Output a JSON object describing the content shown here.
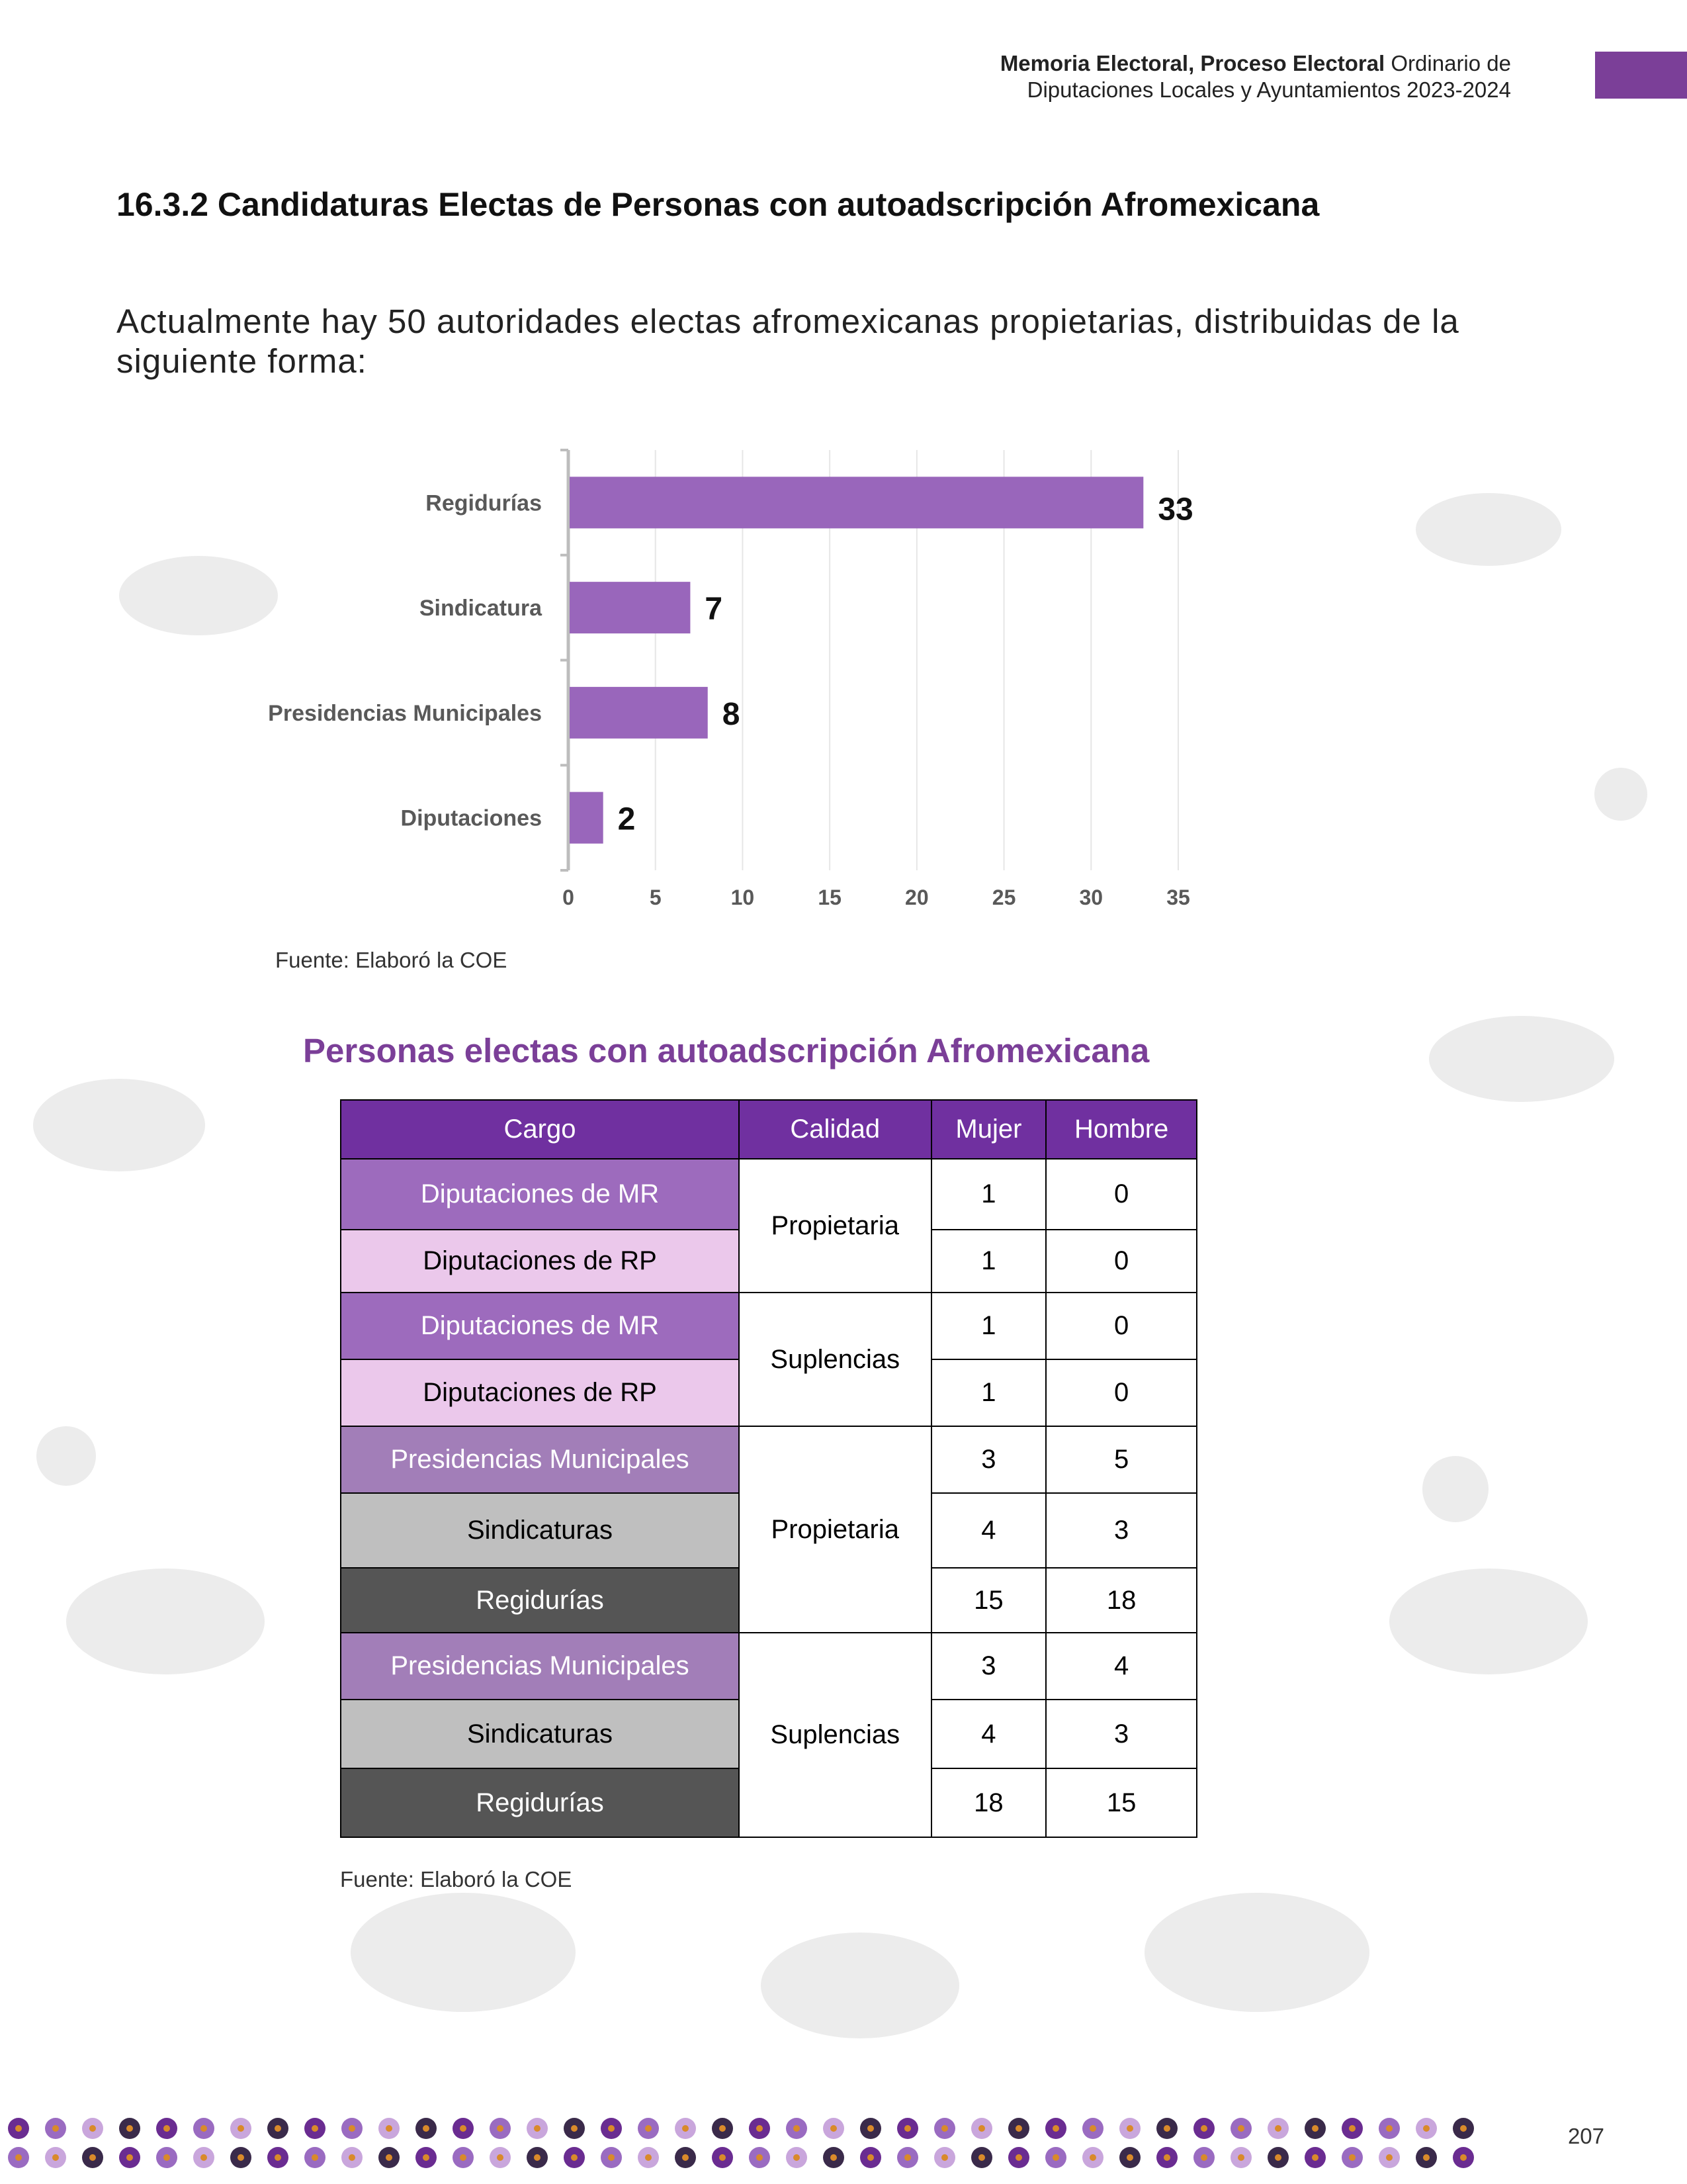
{
  "header": {
    "bold_text": "Memoria Electoral, Proceso Electoral",
    "line1_rest": "Ordinario de",
    "line2": "Diputaciones Locales y Ayuntamientos 2023-2024"
  },
  "section_title": "16.3.2 Candidaturas Electas de Personas con autoadscripción Afromexicana",
  "intro_text": "Actualmente hay 50 autoridades electas afromexicanas propietarias, distribuidas de la siguiente forma:",
  "chart_data": {
    "type": "bar",
    "orientation": "horizontal",
    "categories": [
      "Regidurías",
      "Sindicatura",
      "Presidencias Municipales",
      "Diputaciones"
    ],
    "values": [
      33,
      7,
      8,
      2
    ],
    "xlim": [
      0,
      35
    ],
    "xticks": [
      "0",
      "5",
      "10",
      "15",
      "20",
      "25",
      "30",
      "35"
    ],
    "grid": true,
    "bar_color": "#9966bb",
    "title": "",
    "xlabel": "",
    "ylabel": ""
  },
  "chart_source": "Fuente: Elaboró la COE",
  "table": {
    "title": "Personas electas con autoadscripción Afromexicana",
    "headers": [
      "Cargo",
      "Calidad",
      "Mujer",
      "Hombre"
    ],
    "rows": [
      {
        "cargo": "Diputaciones de MR",
        "calidad": "Propietaria",
        "mujer": "1",
        "hombre": "0"
      },
      {
        "cargo": "Diputaciones de RP",
        "calidad": "",
        "mujer": "1",
        "hombre": "0"
      },
      {
        "cargo": "Diputaciones de MR",
        "calidad": "Suplencias",
        "mujer": "1",
        "hombre": "0"
      },
      {
        "cargo": "Diputaciones de RP",
        "calidad": "",
        "mujer": "1",
        "hombre": "0"
      },
      {
        "cargo": "Presidencias Municipales",
        "calidad": "Propietaria",
        "mujer": "3",
        "hombre": "5"
      },
      {
        "cargo": "Sindicaturas",
        "calidad": "",
        "mujer": "4",
        "hombre": "3"
      },
      {
        "cargo": "Regidurías",
        "calidad": "",
        "mujer": "15",
        "hombre": "18"
      },
      {
        "cargo": "Presidencias Municipales",
        "calidad": "Suplencias",
        "mujer": "3",
        "hombre": "4"
      },
      {
        "cargo": "Sindicaturas",
        "calidad": "",
        "mujer": "4",
        "hombre": "3"
      },
      {
        "cargo": "Regidurías",
        "calidad": "",
        "mujer": "18",
        "hombre": "15"
      }
    ],
    "colors": {
      "header": "#7030a0",
      "mr": "#9d6bbd",
      "rp": "#ebc8eb",
      "presidencias": "#a27eb8",
      "sindicaturas": "#bfbfbf",
      "regidurias": "#555555"
    }
  },
  "table_source": "Fuente: Elaboró la COE",
  "page_number": "207"
}
